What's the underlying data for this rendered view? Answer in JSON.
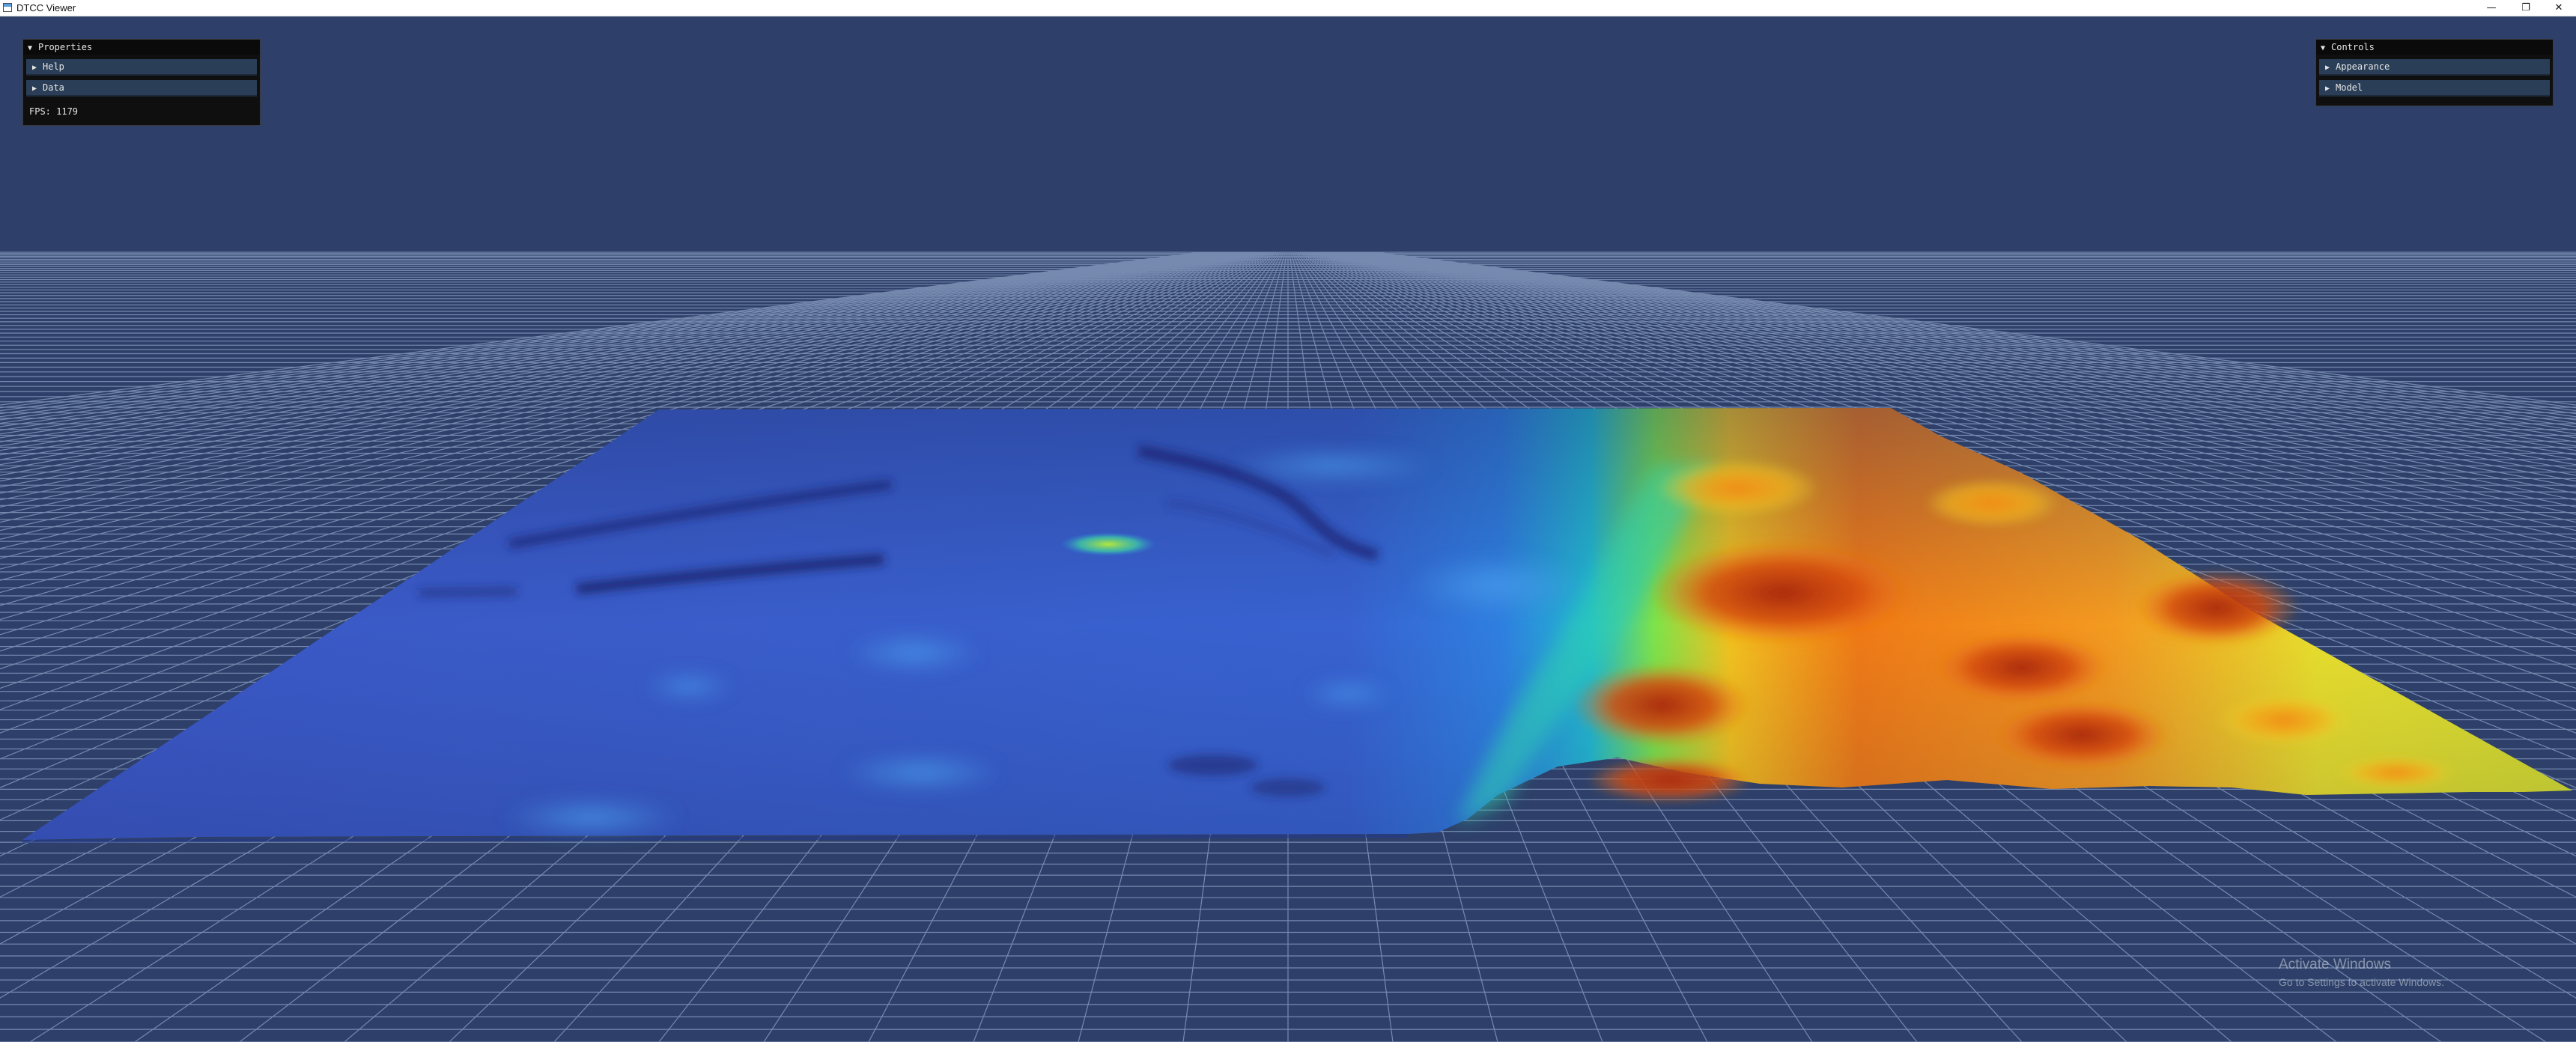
{
  "window": {
    "title": "DTCC Viewer",
    "minimize_glyph": "—",
    "maximize_glyph": "❐",
    "close_glyph": "✕"
  },
  "properties_panel": {
    "title": "Properties",
    "expanded_glyph": "▼",
    "collapsed_glyph": "▶",
    "items": [
      {
        "label": "Help"
      },
      {
        "label": "Data"
      }
    ],
    "fps_text": "FPS: 1179"
  },
  "controls_panel": {
    "title": "Controls",
    "items": [
      {
        "label": "Appearance"
      },
      {
        "label": "Model"
      }
    ]
  },
  "viewport": {
    "background_color": "#2e4069",
    "grid_color": "#8ea3c8",
    "colormap": [
      "#3a4fb8",
      "#2f8fe0",
      "#18d2b0",
      "#9fe640",
      "#f5dd2a",
      "#f47d1a",
      "#b8300c"
    ]
  },
  "watermark": {
    "title": "Activate Windows",
    "subtitle": "Go to Settings to activate Windows."
  }
}
